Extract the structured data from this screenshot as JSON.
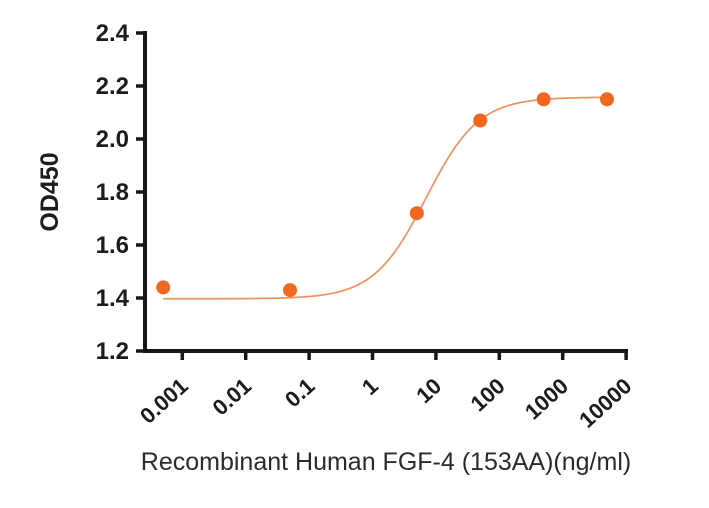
{
  "chart_data": {
    "type": "scatter",
    "subtype": "dose-response-sigmoid",
    "title": "",
    "xlabel": "Recombinant Human FGF-4 (153AA)(ng/ml)",
    "ylabel": "OD450",
    "x_scale": "log10",
    "x_tick_values": [
      0.001,
      0.01,
      0.1,
      1,
      10,
      100,
      1000,
      10000
    ],
    "x_tick_labels": [
      "0.001",
      "0.01",
      "0.1",
      "1",
      "10",
      "100",
      "1000",
      "10000"
    ],
    "y_tick_values": [
      1.2,
      1.4,
      1.6,
      1.8,
      2.0,
      2.2,
      2.4
    ],
    "y_tick_labels": [
      "1.2",
      "1.4",
      "1.6",
      "1.8",
      "2.0",
      "2.2",
      "2.4"
    ],
    "ylim": [
      1.2,
      2.4
    ],
    "xlim": [
      0.00026,
      10000
    ],
    "grid": false,
    "legend": null,
    "points": [
      {
        "x": 0.0005,
        "y": 1.44
      },
      {
        "x": 0.05,
        "y": 1.43
      },
      {
        "x": 5,
        "y": 1.72
      },
      {
        "x": 50,
        "y": 2.07
      },
      {
        "x": 500,
        "y": 2.15
      },
      {
        "x": 5000,
        "y": 2.15
      }
    ],
    "fit_curve": {
      "model": "4PL",
      "bottom": 1.397,
      "top": 2.158,
      "ec50": 7.0,
      "hill": 1.05,
      "x_start": 0.0005,
      "x_end": 5000
    },
    "colors": {
      "marker": "#f2671f",
      "curve": "#f0925e",
      "axis": "#161616",
      "text": "#1c1c1c"
    }
  }
}
